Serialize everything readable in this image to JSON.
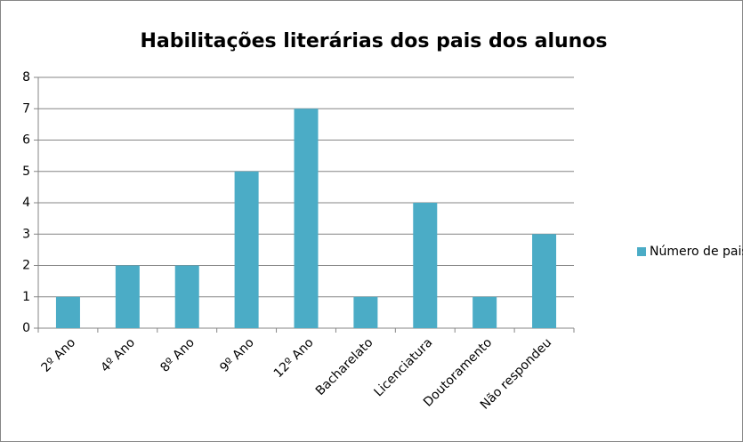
{
  "chart_data": {
    "type": "bar",
    "title": "Habilitações literárias dos pais dos alunos",
    "categories": [
      "2º Ano",
      "4º Ano",
      "8º Ano",
      "9º Ano",
      "12º Ano",
      "Bacharelato",
      "Licenciatura",
      "Doutoramento",
      "Não respondeu"
    ],
    "series": [
      {
        "name": "Número de pais",
        "color": "#4bacc6",
        "values": [
          1,
          2,
          2,
          5,
          7,
          1,
          4,
          1,
          3
        ]
      }
    ],
    "ylim": [
      0,
      8
    ],
    "yticks": [
      0,
      1,
      2,
      3,
      4,
      5,
      6,
      7,
      8
    ],
    "grid": true,
    "legend": "right"
  }
}
